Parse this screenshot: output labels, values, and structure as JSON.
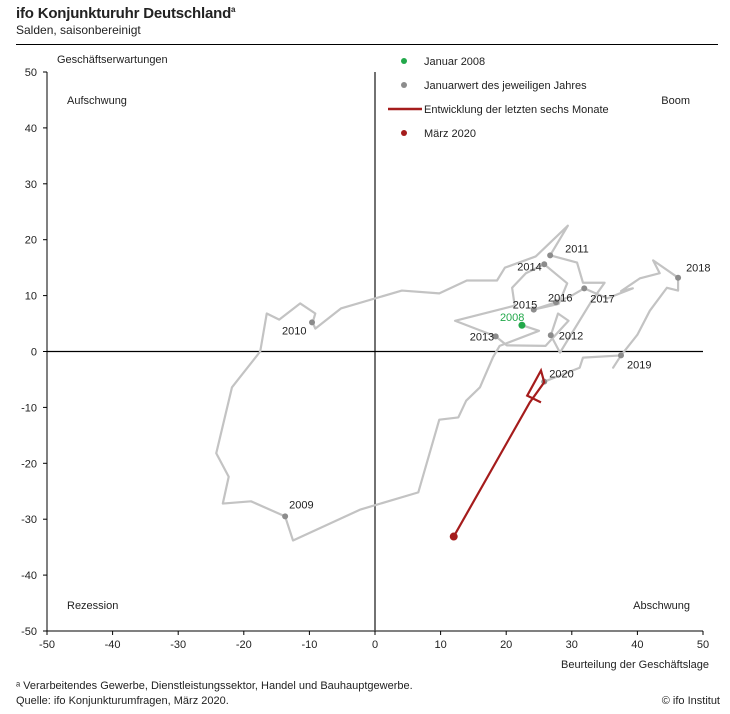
{
  "header": {
    "title": "ifo Konjunkturuhr  Deutschland",
    "title_footnote_mark": "a",
    "subtitle": "Salden, saisonbereinigt"
  },
  "footer": {
    "footnote": "ᵃ Verarbeitendes Gewerbe, Dienstleistungssektor, Handel und Bauhauptgewerbe.",
    "source": "Quelle: ifo Konjunkturumfragen, März 2020.",
    "copyright": "© ifo Institut"
  },
  "chart_data": {
    "type": "line",
    "xlabel": "Beurteilung der Geschäftslage",
    "ylabel": "Geschäftserwartungen",
    "xlim": [
      -50,
      50
    ],
    "ylim": [
      -50,
      50
    ],
    "x_ticks": [
      "-50",
      "-40",
      "-30",
      "-20",
      "-10",
      "0",
      "10",
      "20",
      "30",
      "40",
      "50"
    ],
    "y_ticks": [
      "50",
      "40",
      "30",
      "20",
      "10",
      "0",
      "-10",
      "-20",
      "-30",
      "-40",
      "-50"
    ],
    "grid": false,
    "quadrants": {
      "top_left": "Aufschwung",
      "top_right": "Boom",
      "bottom_left": "Rezession",
      "bottom_right": "Abschwung"
    },
    "legend_placement": "top-center",
    "legend": [
      {
        "label": "Januar 2008",
        "marker": "dot",
        "color": "#22a84a"
      },
      {
        "label": "Januarwert des jeweiligen Jahres",
        "marker": "dot",
        "color": "#8c8c8c"
      },
      {
        "label": "Entwicklung der letzten sechs Monate",
        "marker": "line",
        "color": "#a51c1c"
      },
      {
        "label": "März 2020",
        "marker": "dot",
        "color": "#a51c1c"
      }
    ],
    "colors": {
      "history": "#c3c3c3",
      "year_dot": "#8c8c8c",
      "jan2008": "#22a84a",
      "recent": "#a51c1c",
      "axis": "#000000"
    },
    "history_path": [
      [
        22.4,
        4.7
      ],
      [
        25,
        3.7
      ],
      [
        19,
        1
      ],
      [
        18,
        -1
      ],
      [
        16,
        -6.4
      ],
      [
        13.9,
        -8.8
      ],
      [
        12.7,
        -11.8
      ],
      [
        9.8,
        -12.2
      ],
      [
        6.6,
        -25.2
      ],
      [
        -2.3,
        -28.3
      ],
      [
        -12.5,
        -33.8
      ],
      [
        -13.7,
        -29.5
      ],
      [
        -18.9,
        -26.8
      ],
      [
        -23.2,
        -27.2
      ],
      [
        -22.3,
        -22.4
      ],
      [
        -24.2,
        -18.2
      ],
      [
        -21.8,
        -6.4
      ],
      [
        -17.5,
        0
      ],
      [
        -16.5,
        6.8
      ],
      [
        -14.6,
        5.7
      ],
      [
        -11.4,
        8.6
      ],
      [
        -9.1,
        6.8
      ],
      [
        -9.5,
        5.2
      ],
      [
        -9.1,
        4.1
      ],
      [
        -5.2,
        7.7
      ],
      [
        4.1,
        10.9
      ],
      [
        9.8,
        10.4
      ],
      [
        14.0,
        12.7
      ],
      [
        18.6,
        12.7
      ],
      [
        19.8,
        15
      ],
      [
        24.5,
        17
      ],
      [
        29.4,
        22.5
      ],
      [
        26.7,
        17.2
      ],
      [
        30.8,
        15.9
      ],
      [
        31.7,
        12.3
      ],
      [
        35,
        12.3
      ],
      [
        33,
        9
      ],
      [
        28.2,
        -0.2
      ],
      [
        26.8,
        2.9
      ],
      [
        27.9,
        6.8
      ],
      [
        29.5,
        5.5
      ],
      [
        26,
        1
      ],
      [
        20.1,
        1.1
      ],
      [
        18.4,
        2.7
      ],
      [
        12.2,
        5.5
      ],
      [
        21.3,
        8.2
      ],
      [
        20.9,
        11.4
      ],
      [
        23,
        14
      ],
      [
        25.8,
        15.6
      ],
      [
        29.3,
        12.2
      ],
      [
        28,
        8.5
      ],
      [
        24.2,
        7.5
      ],
      [
        27.6,
        8.8
      ],
      [
        30,
        10
      ],
      [
        31.9,
        11.3
      ],
      [
        35.4,
        9.5
      ],
      [
        39.3,
        11.3
      ],
      [
        37.5,
        10.8
      ],
      [
        40.4,
        13.1
      ],
      [
        43.4,
        14
      ],
      [
        42.4,
        16.3
      ],
      [
        46.2,
        13.2
      ],
      [
        46.2,
        10.9
      ],
      [
        44.5,
        11.4
      ],
      [
        41.9,
        7.3
      ],
      [
        40,
        3
      ],
      [
        37.5,
        -0.7
      ],
      [
        36.3,
        -2.9
      ],
      [
        37.5,
        -0.7
      ],
      [
        31.7,
        -1.1
      ],
      [
        31.2,
        -2.9
      ],
      [
        25.8,
        -5.4
      ]
    ],
    "year_points": [
      {
        "year": "2008",
        "x": 22.4,
        "y": 4.7,
        "highlight": true
      },
      {
        "year": "2009",
        "x": -13.7,
        "y": -29.5
      },
      {
        "year": "2010",
        "x": -9.6,
        "y": 5.2
      },
      {
        "year": "2011",
        "x": 26.7,
        "y": 17.2
      },
      {
        "year": "2012",
        "x": 26.8,
        "y": 2.9
      },
      {
        "year": "2013",
        "x": 18.4,
        "y": 2.7
      },
      {
        "year": "2014",
        "x": 25.8,
        "y": 15.6
      },
      {
        "year": "2015",
        "x": 24.2,
        "y": 7.5
      },
      {
        "year": "2016",
        "x": 27.6,
        "y": 8.8
      },
      {
        "year": "2017",
        "x": 31.9,
        "y": 11.3
      },
      {
        "year": "2018",
        "x": 46.2,
        "y": 13.2
      },
      {
        "year": "2019",
        "x": 37.5,
        "y": -0.7
      },
      {
        "year": "2020",
        "x": 25.8,
        "y": -5.4
      }
    ],
    "recent_path": [
      [
        25.3,
        -9.1
      ],
      [
        23.2,
        -7.9
      ],
      [
        25.3,
        -3.4
      ],
      [
        25.8,
        -5.5
      ],
      [
        23.6,
        -9.1
      ],
      [
        12.0,
        -33.1
      ]
    ],
    "latest_point": {
      "label": "März 2020",
      "x": 12.0,
      "y": -33.1
    }
  }
}
